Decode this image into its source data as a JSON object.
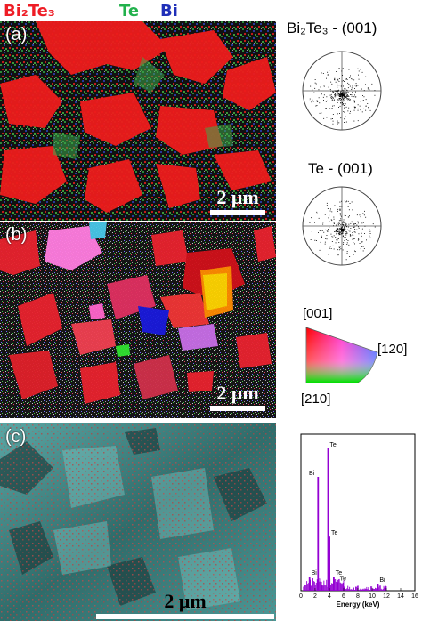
{
  "legend": {
    "bi2te3": {
      "text": "Bi₂Te₃",
      "color": "#ee1c25"
    },
    "te": {
      "text": "Te",
      "color": "#22b14c"
    },
    "bi": {
      "text": "Bi",
      "color": "#1f2fb8"
    }
  },
  "panels": {
    "a": {
      "label": "(a)",
      "scale": "2 μm"
    },
    "b": {
      "label": "(b)",
      "scale": "2 μm"
    },
    "c": {
      "label": "(c)",
      "scale": "2 μm"
    }
  },
  "pole_figures": {
    "bi2te3": {
      "title": "Bi₂Te₃ - (001)"
    },
    "te": {
      "title": "Te - (001)"
    }
  },
  "ipf_key": {
    "top": "[001]",
    "right": "[120]",
    "bottom": "[210]"
  },
  "chart_data": {
    "type": "bar",
    "xlabel": "Energy (keV)",
    "xlim": [
      0,
      16
    ],
    "x_ticks": [
      "0",
      "2",
      "4",
      "6",
      "8",
      "10",
      "12",
      "14",
      "16"
    ],
    "peaks": [
      {
        "x": 2.4,
        "y": 0.8,
        "label": "Bi"
      },
      {
        "x": 3.8,
        "y": 1.0,
        "label": "Te"
      },
      {
        "x": 4.0,
        "y": 0.38,
        "label": "Te"
      },
      {
        "x": 1.2,
        "y": 0.1,
        "label": "Bi"
      },
      {
        "x": 4.6,
        "y": 0.1,
        "label": "Te"
      },
      {
        "x": 5.2,
        "y": 0.06,
        "label": "Te"
      },
      {
        "x": 10.8,
        "y": 0.05,
        "label": "Bi"
      }
    ],
    "color": "#9400d3"
  }
}
